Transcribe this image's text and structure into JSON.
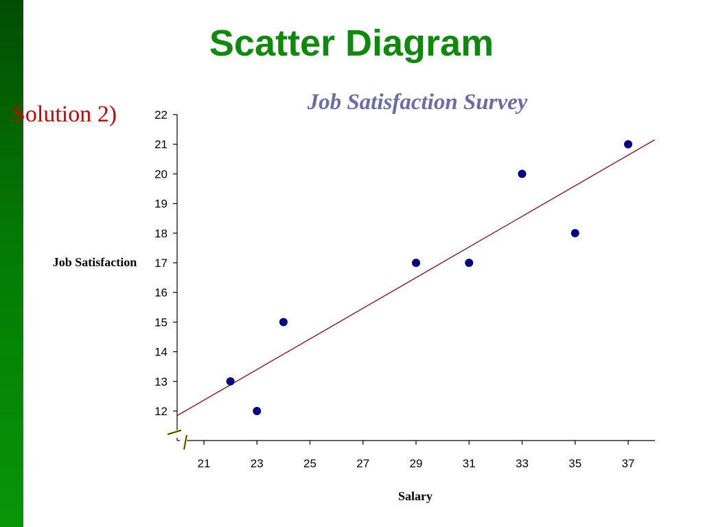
{
  "slide": {
    "title": "Scatter Diagram",
    "solution_label": "Solution 2)",
    "sidebar_color": "#047a04"
  },
  "chart_data": {
    "type": "scatter",
    "title": "Job Satisfaction Survey",
    "xlabel": "Salary",
    "ylabel": "Job Satisfaction",
    "xlim": [
      20,
      38
    ],
    "ylim": [
      11,
      22
    ],
    "xticks": [
      21,
      23,
      25,
      27,
      29,
      31,
      33,
      35,
      37
    ],
    "yticks": [
      12,
      13,
      14,
      15,
      16,
      17,
      18,
      19,
      20,
      21,
      22
    ],
    "axis_break": true,
    "grid": false,
    "points": [
      {
        "x": 22,
        "y": 13
      },
      {
        "x": 23,
        "y": 12
      },
      {
        "x": 24,
        "y": 15
      },
      {
        "x": 29,
        "y": 17
      },
      {
        "x": 31,
        "y": 17
      },
      {
        "x": 33,
        "y": 20
      },
      {
        "x": 35,
        "y": 18
      },
      {
        "x": 37,
        "y": 21
      }
    ],
    "trendline": {
      "x": [
        20,
        38
      ],
      "y": [
        11.85,
        21.15
      ]
    },
    "point_color": "#000080",
    "trendline_color": "#8b1a1a"
  }
}
